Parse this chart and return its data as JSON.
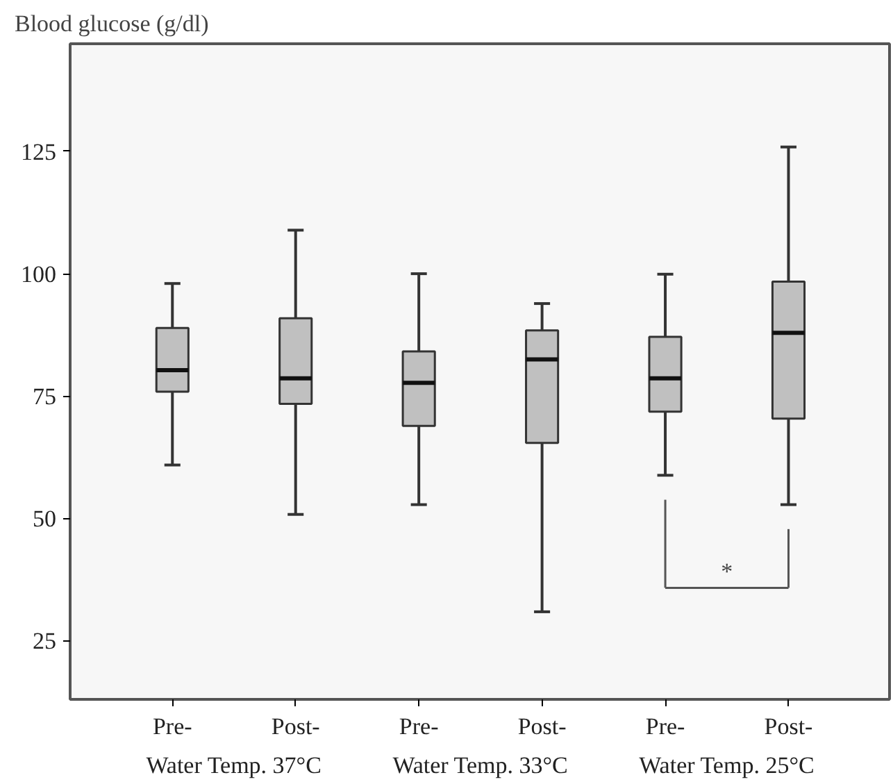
{
  "chart_data": {
    "type": "box",
    "ylabel": "Blood glucose (g/dl)",
    "categories": [
      "Pre-",
      "Post-",
      "Pre-",
      "Post-",
      "Pre-",
      "Post-"
    ],
    "color": "#c0c0c0",
    "boxes": [
      {
        "low": 60.9,
        "q1": 75.9,
        "median": 80.3,
        "q3": 88.9,
        "high": 98
      },
      {
        "low": 50.8,
        "q1": 73.4,
        "median": 78.6,
        "q3": 90.9,
        "high": 108.9
      },
      {
        "low": 52.8,
        "q1": 68.9,
        "median": 77.7,
        "q3": 84.1,
        "high": 100
      },
      {
        "low": 30.9,
        "q1": 65.4,
        "median": 82.5,
        "q3": 88.4,
        "high": 93.9
      },
      {
        "low": 58.8,
        "q1": 71.8,
        "median": 78.6,
        "q3": 87.1,
        "high": 99.9
      },
      {
        "low": 52.8,
        "q1": 70.4,
        "median": 87.9,
        "q3": 98.4,
        "high": 125.9
      }
    ],
    "ylim": [
      13,
      147
    ],
    "yticks": [
      25,
      50,
      75,
      100,
      125
    ],
    "annotations": [
      "Water Temp. 37°C",
      "Water Temp. 33°C",
      "Water Temp. 25°C",
      "*"
    ],
    "grid": false
  }
}
